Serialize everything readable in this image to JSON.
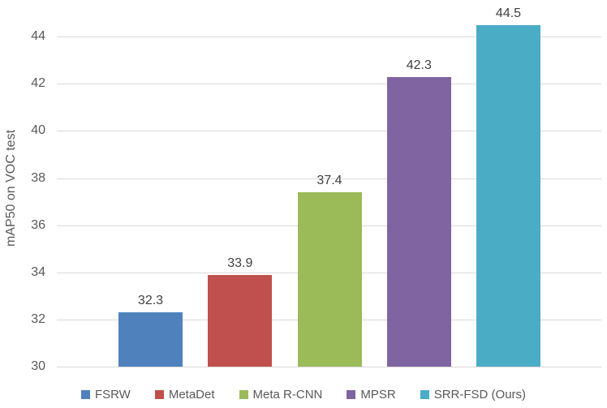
{
  "chart_data": {
    "type": "bar",
    "categories": [
      "FSRW",
      "MetaDet",
      "Meta R-CNN",
      "MPSR",
      "SRR-FSD (Ours)"
    ],
    "values": [
      32.3,
      33.9,
      37.4,
      42.3,
      44.5
    ],
    "data_labels": [
      "32.3",
      "33.9",
      "37.4",
      "42.3",
      "44.5"
    ],
    "bar_colors": [
      "#4f81bd",
      "#c0504d",
      "#9bbb59",
      "#8064a2",
      "#4bacc6"
    ],
    "title": "",
    "xlabel": "",
    "ylabel": "mAP50 on VOC test",
    "ylim": [
      30,
      45
    ],
    "yticks": [
      30,
      32,
      34,
      36,
      38,
      40,
      42,
      44
    ],
    "grid": true,
    "legend_position": "bottom",
    "legend_entries": [
      "FSRW",
      "MetaDet",
      "Meta R-CNN",
      "MPSR",
      "SRR-FSD (Ours)"
    ],
    "colors": {
      "gridline": "#d9d9d9",
      "tick_text": "#595959",
      "axis_title_text": "#595959",
      "data_label_text": "#404040",
      "background": "#ffffff"
    }
  }
}
